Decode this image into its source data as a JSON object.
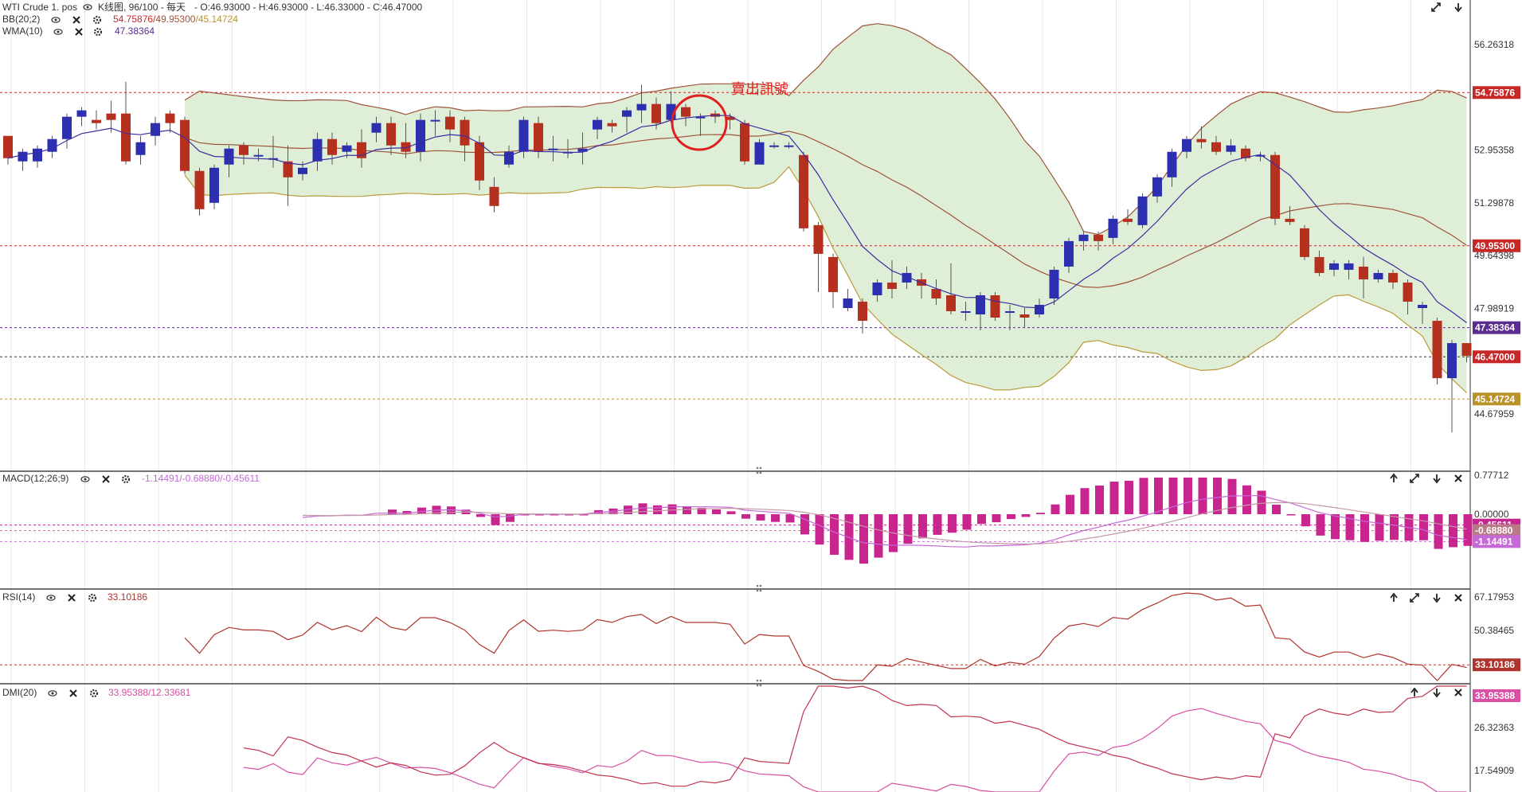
{
  "colors": {
    "up": "#2b2fb0",
    "down": "#b5301f",
    "bb_fill": "#d9ecd0",
    "bb_upper": "#a0523a",
    "bb_mid": "#a0523a",
    "bb_lower": "#b99a3a",
    "wma": "#3c2ea0",
    "macd_bar": "#c8258f",
    "macd_line": "#c469d6",
    "signal_line": "#c49aa5",
    "rsi": "#b0342e",
    "dmi_plus": "#d84fa3",
    "dmi_minus": "#c1334e",
    "grid": "#e8e8e8",
    "annot": "#e02020"
  },
  "header": {
    "symbol": "WTI Crude 1. pos",
    "chart_type": "K线图, 96/100 - 每天",
    "ohlc": "- O:46.93000 - H:46.93000 - L:46.33000 - C:46.47000",
    "bb_label": "BB(20;2)",
    "bb_values": {
      "upper": "54.75876",
      "mid": "49.95300",
      "lower": "45.14724"
    },
    "wma_label": "WMA(10)",
    "wma_value": "47.38364"
  },
  "annotation": {
    "text": "賣出訊號",
    "icon": "circle-marker"
  },
  "price_axis": {
    "ticks": [
      "56.26318",
      "52.95358",
      "51.29878",
      "49.64398",
      "47.98919",
      "44.67959"
    ],
    "tags": [
      {
        "value": "54.75876",
        "color": "#c62828"
      },
      {
        "value": "49.95300",
        "color": "#c62828"
      },
      {
        "value": "47.38364",
        "color": "#5b2d90"
      },
      {
        "value": "46.47000",
        "color": "#c62828"
      },
      {
        "value": "45.14724",
        "color": "#b9932a"
      }
    ]
  },
  "macd": {
    "label": "MACD(12;26;9)",
    "values_text": "-1.14491/-0.68880/-0.45611",
    "ticks": [
      "0.77712",
      "0.00000"
    ],
    "tags": [
      {
        "value": "-0.45611",
        "color": "#c8258f"
      },
      {
        "value": "-0.68880",
        "color": "#b77a86"
      },
      {
        "value": "-1.14491",
        "color": "#c469d6"
      }
    ]
  },
  "rsi": {
    "label": "RSI(14)",
    "value_text": "33.10186",
    "ticks": [
      "67.17953",
      "50.38465"
    ],
    "tags": [
      {
        "value": "33.10186",
        "color": "#b0342e"
      }
    ]
  },
  "dmi": {
    "label": "DMI(20)",
    "values_text": "33.95388/12.33681",
    "ticks": [
      "26.32363",
      "17.54909"
    ],
    "tags": [
      {
        "value": "33.95388",
        "color": "#d84fa3"
      }
    ]
  },
  "chart_data": {
    "type": "candlestick",
    "candles": [
      [
        53.4,
        52.7,
        53.2,
        52.5
      ],
      [
        52.6,
        52.9,
        53.0,
        52.3
      ],
      [
        52.6,
        53.0,
        53.1,
        52.4
      ],
      [
        52.9,
        53.3,
        53.4,
        52.7
      ],
      [
        53.3,
        54.0,
        54.1,
        53.0
      ],
      [
        54.0,
        54.2,
        54.3,
        53.7
      ],
      [
        53.9,
        53.8,
        54.2,
        53.6
      ],
      [
        54.1,
        53.9,
        54.5,
        53.5
      ],
      [
        54.1,
        52.6,
        55.1,
        52.5
      ],
      [
        52.8,
        53.2,
        53.4,
        52.5
      ],
      [
        53.4,
        53.8,
        54.0,
        53.1
      ],
      [
        54.1,
        53.8,
        54.2,
        53.5
      ],
      [
        53.9,
        52.3,
        54.0,
        52.2
      ],
      [
        52.3,
        51.1,
        52.4,
        50.9
      ],
      [
        51.3,
        52.4,
        52.5,
        51.1
      ],
      [
        52.5,
        53.0,
        53.1,
        52.1
      ],
      [
        53.1,
        52.8,
        53.2,
        52.5
      ],
      [
        52.8,
        52.8,
        53.0,
        52.6
      ],
      [
        52.7,
        52.7,
        53.4,
        52.4
      ],
      [
        52.6,
        52.1,
        53.1,
        51.2
      ],
      [
        52.2,
        52.4,
        52.6,
        52.0
      ],
      [
        52.6,
        53.3,
        53.5,
        52.3
      ],
      [
        53.3,
        52.8,
        53.5,
        52.5
      ],
      [
        52.9,
        53.1,
        53.2,
        52.7
      ],
      [
        53.2,
        52.7,
        53.6,
        52.4
      ],
      [
        53.5,
        53.8,
        54.0,
        53.2
      ],
      [
        53.8,
        53.1,
        54.0,
        52.8
      ],
      [
        53.2,
        52.9,
        53.8,
        52.7
      ],
      [
        52.9,
        53.9,
        54.1,
        52.6
      ],
      [
        53.9,
        53.9,
        54.2,
        53.4
      ],
      [
        54.0,
        53.6,
        54.2,
        53.2
      ],
      [
        53.9,
        53.1,
        54.0,
        52.6
      ],
      [
        53.2,
        52.0,
        53.4,
        51.7
      ],
      [
        51.8,
        51.2,
        52.1,
        51.0
      ],
      [
        52.5,
        52.9,
        53.1,
        52.4
      ],
      [
        52.9,
        53.9,
        54.0,
        52.7
      ],
      [
        53.8,
        52.9,
        54.0,
        52.7
      ],
      [
        53.0,
        53.0,
        53.4,
        52.6
      ],
      [
        52.9,
        52.9,
        53.3,
        52.7
      ],
      [
        52.9,
        53.0,
        53.5,
        52.5
      ],
      [
        53.6,
        53.9,
        54.0,
        53.3
      ],
      [
        53.8,
        53.7,
        53.9,
        53.5
      ],
      [
        54.0,
        54.2,
        54.3,
        53.5
      ],
      [
        54.2,
        54.4,
        55.0,
        53.8
      ],
      [
        54.4,
        53.8,
        54.6,
        53.6
      ],
      [
        53.9,
        54.4,
        54.8,
        53.8
      ],
      [
        54.3,
        54.0,
        54.4,
        53.7
      ],
      [
        54.0,
        54.0,
        54.1,
        53.4
      ],
      [
        54.1,
        54.0,
        54.2,
        53.8
      ],
      [
        54.0,
        53.9,
        54.1,
        53.6
      ],
      [
        53.8,
        52.6,
        53.9,
        52.5
      ],
      [
        52.5,
        53.2,
        53.3,
        52.6
      ],
      [
        53.1,
        53.1,
        53.2,
        53.0
      ],
      [
        53.1,
        53.1,
        53.2,
        53.0
      ],
      [
        52.8,
        50.5,
        52.9,
        50.4
      ],
      [
        50.6,
        49.7,
        50.7,
        48.5
      ],
      [
        49.6,
        48.5,
        49.7,
        48.0
      ],
      [
        48.0,
        48.3,
        48.6,
        47.9
      ],
      [
        48.2,
        47.6,
        48.3,
        47.2
      ],
      [
        48.4,
        48.8,
        48.9,
        48.2
      ],
      [
        48.8,
        48.6,
        49.5,
        48.3
      ],
      [
        48.8,
        49.1,
        49.3,
        48.6
      ],
      [
        48.9,
        48.7,
        49.1,
        48.3
      ],
      [
        48.6,
        48.3,
        48.9,
        48.1
      ],
      [
        48.4,
        47.9,
        49.4,
        47.8
      ],
      [
        47.9,
        47.9,
        48.2,
        47.6
      ],
      [
        47.8,
        48.4,
        48.5,
        47.3
      ],
      [
        48.4,
        47.7,
        48.5,
        47.6
      ],
      [
        47.9,
        47.9,
        48.1,
        47.3
      ],
      [
        47.8,
        47.7,
        48.0,
        47.4
      ],
      [
        47.8,
        48.1,
        48.3,
        47.7
      ],
      [
        48.3,
        49.2,
        49.3,
        48.1
      ],
      [
        49.3,
        50.1,
        50.2,
        49.1
      ],
      [
        50.1,
        50.3,
        50.4,
        49.8
      ],
      [
        50.3,
        50.1,
        50.4,
        49.8
      ],
      [
        50.2,
        50.8,
        50.9,
        50.0
      ],
      [
        50.8,
        50.7,
        51.1,
        50.6
      ],
      [
        50.6,
        51.5,
        51.6,
        50.5
      ],
      [
        51.5,
        52.1,
        52.2,
        51.3
      ],
      [
        52.1,
        52.9,
        53.0,
        51.8
      ],
      [
        52.9,
        53.3,
        53.4,
        52.7
      ],
      [
        53.3,
        53.2,
        53.7,
        53.0
      ],
      [
        53.2,
        52.9,
        53.4,
        52.8
      ],
      [
        52.9,
        53.1,
        53.3,
        52.8
      ],
      [
        53.0,
        52.7,
        53.1,
        52.6
      ],
      [
        52.8,
        52.8,
        52.9,
        52.6
      ],
      [
        52.8,
        50.8,
        52.9,
        50.6
      ],
      [
        50.8,
        50.7,
        51.2,
        50.6
      ],
      [
        50.5,
        49.6,
        50.6,
        49.5
      ],
      [
        49.6,
        49.1,
        49.8,
        49.0
      ],
      [
        49.2,
        49.4,
        49.5,
        49.0
      ],
      [
        49.2,
        49.4,
        49.5,
        48.9
      ],
      [
        49.3,
        48.9,
        49.6,
        48.3
      ],
      [
        48.9,
        49.1,
        49.2,
        48.8
      ],
      [
        49.1,
        48.8,
        49.2,
        48.6
      ],
      [
        48.8,
        48.2,
        48.9,
        47.8
      ],
      [
        48.0,
        48.1,
        48.2,
        47.5
      ],
      [
        47.6,
        45.8,
        47.7,
        45.6
      ],
      [
        45.8,
        46.9,
        47.0,
        44.1
      ],
      [
        46.9,
        46.5,
        46.9,
        46.3
      ]
    ],
    "last_close": 46.47
  }
}
